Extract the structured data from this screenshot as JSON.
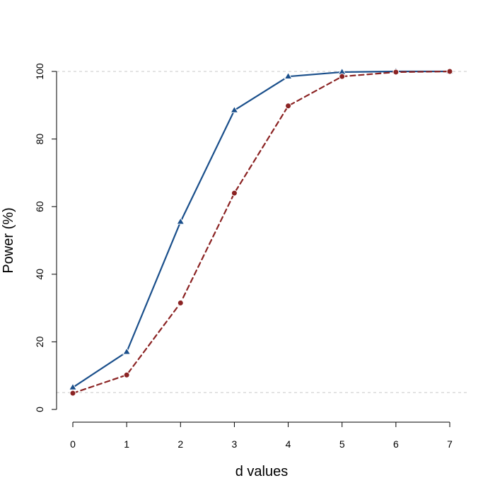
{
  "chart_data": {
    "type": "line",
    "title": "",
    "xlabel": "d values",
    "ylabel": "Power (%)",
    "xlim": [
      0,
      7
    ],
    "ylim": [
      0,
      100
    ],
    "x": [
      0,
      1,
      2,
      3,
      4,
      5,
      6,
      7
    ],
    "x_ticks": [
      "0",
      "1",
      "2",
      "3",
      "4",
      "5",
      "6",
      "7"
    ],
    "y_ticks": [
      "0",
      "20",
      "40",
      "60",
      "80",
      "100"
    ],
    "reference_lines_y": [
      5,
      100
    ],
    "legend": "none",
    "grid": false,
    "series": [
      {
        "values": [
          6.5,
          17,
          55.5,
          88.5,
          98.5,
          99.8,
          100,
          100
        ],
        "color": "#1a4f8b",
        "line_style": "solid",
        "marker": "triangle"
      },
      {
        "values": [
          4.8,
          10.2,
          31.5,
          64,
          89.8,
          98.5,
          99.8,
          100
        ],
        "color": "#8b2323",
        "line_style": "dashed",
        "marker": "circle"
      }
    ],
    "reference_line_color": "#c8c8c8"
  }
}
